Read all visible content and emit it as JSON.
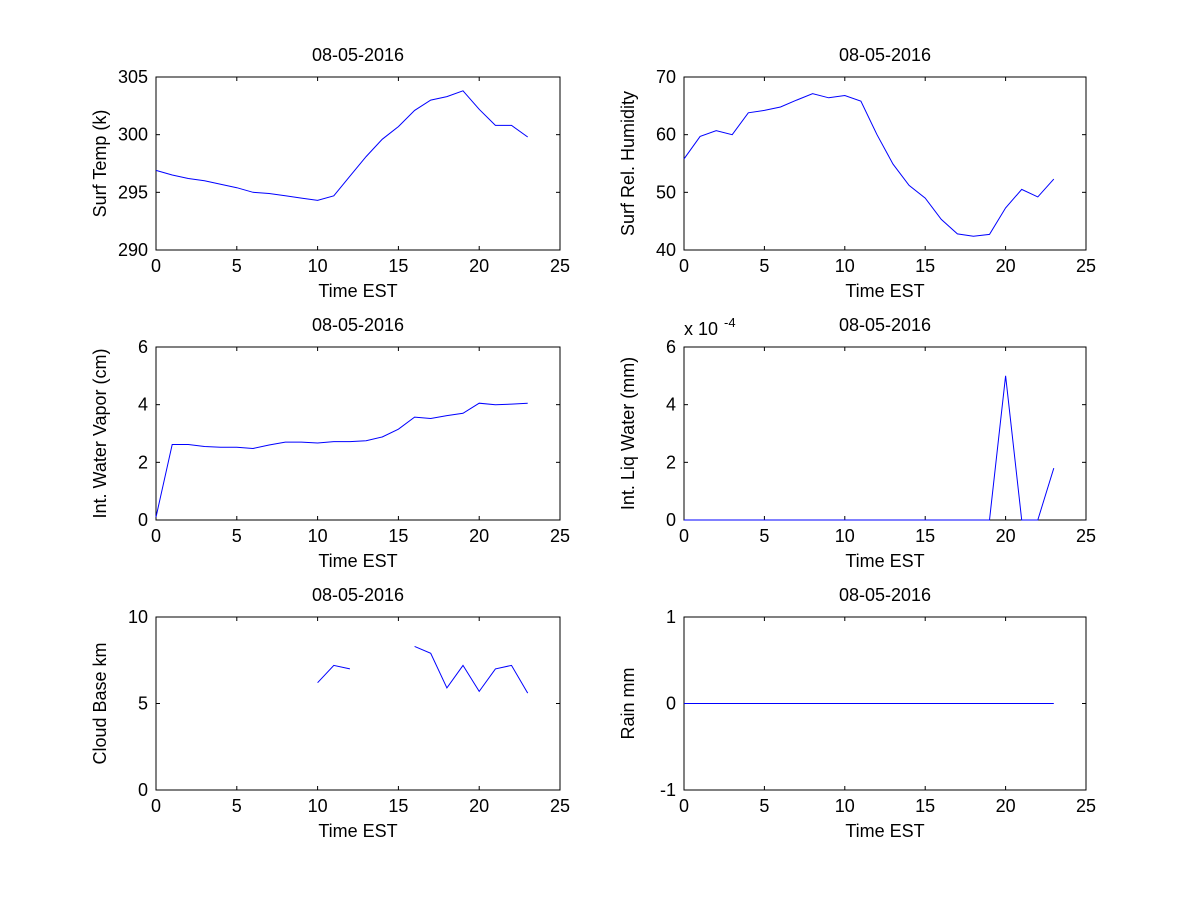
{
  "chart_data": [
    {
      "type": "line",
      "title": "08-05-2016",
      "xlabel": "Time EST",
      "ylabel": "Surf Temp (k)",
      "xlim": [
        0,
        25
      ],
      "ylim": [
        290,
        305
      ],
      "xticks": [
        0,
        5,
        10,
        15,
        20,
        25
      ],
      "yticks": [
        290,
        295,
        300,
        305
      ],
      "color": "#0000ff",
      "x": [
        0,
        1,
        2,
        3,
        4,
        5,
        6,
        7,
        8,
        9,
        10,
        11,
        12,
        13,
        14,
        15,
        16,
        17,
        18,
        19,
        20,
        21,
        22,
        23
      ],
      "y": [
        296.9,
        296.5,
        296.2,
        296.0,
        295.7,
        295.4,
        295.0,
        294.9,
        294.7,
        294.5,
        294.3,
        294.7,
        296.4,
        298.1,
        299.6,
        300.7,
        302.1,
        303.0,
        303.3,
        303.8,
        302.2,
        300.8,
        300.8,
        299.8
      ]
    },
    {
      "type": "line",
      "title": "08-05-2016",
      "xlabel": "Time EST",
      "ylabel": "Surf Rel. Humidity",
      "xlim": [
        0,
        25
      ],
      "ylim": [
        40,
        70
      ],
      "xticks": [
        0,
        5,
        10,
        15,
        20,
        25
      ],
      "yticks": [
        40,
        50,
        60,
        70
      ],
      "color": "#0000ff",
      "x": [
        0,
        1,
        2,
        3,
        4,
        5,
        6,
        7,
        8,
        9,
        10,
        11,
        12,
        13,
        14,
        15,
        16,
        17,
        18,
        19,
        20,
        21,
        22,
        23
      ],
      "y": [
        55.8,
        59.7,
        60.7,
        60.0,
        63.8,
        64.2,
        64.8,
        66.0,
        67.1,
        66.4,
        66.8,
        65.8,
        60.0,
        54.9,
        51.2,
        49.0,
        45.3,
        42.8,
        42.4,
        42.7,
        47.3,
        50.5,
        49.2,
        52.3
      ]
    },
    {
      "type": "line",
      "title": "08-05-2016",
      "xlabel": "Time EST",
      "ylabel": "Int. Water Vapor (cm)",
      "xlim": [
        0,
        25
      ],
      "ylim": [
        0,
        6
      ],
      "xticks": [
        0,
        5,
        10,
        15,
        20,
        25
      ],
      "yticks": [
        0,
        2,
        4,
        6
      ],
      "color": "#0000ff",
      "x": [
        0,
        1,
        2,
        3,
        4,
        5,
        6,
        7,
        8,
        9,
        10,
        11,
        12,
        13,
        14,
        15,
        16,
        17,
        18,
        19,
        20,
        21,
        22,
        23
      ],
      "y": [
        0.1,
        2.62,
        2.62,
        2.55,
        2.52,
        2.52,
        2.48,
        2.6,
        2.7,
        2.7,
        2.67,
        2.72,
        2.72,
        2.75,
        2.88,
        3.15,
        3.57,
        3.52,
        3.62,
        3.7,
        4.05,
        4.0,
        4.02,
        4.05
      ]
    },
    {
      "type": "line",
      "title": "08-05-2016",
      "xlabel": "Time EST",
      "ylabel": "Int. Liq Water (mm)",
      "xlim": [
        0,
        25
      ],
      "ylim": [
        0,
        6
      ],
      "xticks": [
        0,
        5,
        10,
        15,
        20,
        25
      ],
      "yticks": [
        0,
        2,
        4,
        6
      ],
      "exponent_label": "x 10",
      "exponent_power": "-4",
      "color": "#0000ff",
      "x": [
        0,
        1,
        2,
        3,
        4,
        5,
        6,
        7,
        8,
        9,
        10,
        11,
        12,
        13,
        14,
        15,
        16,
        17,
        18,
        19,
        20,
        21,
        22,
        23
      ],
      "y": [
        0,
        0,
        0,
        0,
        0,
        0,
        0,
        0,
        0,
        0,
        0,
        0,
        0,
        0,
        0,
        0,
        0,
        0,
        0,
        0,
        5.0,
        0,
        0,
        1.8
      ]
    },
    {
      "type": "line",
      "title": "08-05-2016",
      "xlabel": "Time EST",
      "ylabel": "Cloud Base km",
      "xlim": [
        0,
        25
      ],
      "ylim": [
        0,
        10
      ],
      "xticks": [
        0,
        5,
        10,
        15,
        20,
        25
      ],
      "yticks": [
        0,
        5,
        10
      ],
      "color": "#0000ff",
      "x": [
        10,
        11,
        12,
        13,
        14,
        15,
        16,
        17,
        18,
        19,
        20,
        21,
        22,
        23
      ],
      "y": [
        6.2,
        7.2,
        7.0,
        null,
        null,
        null,
        8.3,
        7.9,
        5.9,
        7.2,
        5.7,
        7.0,
        7.2,
        5.6
      ]
    },
    {
      "type": "line",
      "title": "08-05-2016",
      "xlabel": "Time EST",
      "ylabel": "Rain mm",
      "xlim": [
        0,
        25
      ],
      "ylim": [
        -1,
        1
      ],
      "xticks": [
        0,
        5,
        10,
        15,
        20,
        25
      ],
      "yticks": [
        -1,
        0,
        1
      ],
      "color": "#0000ff",
      "x": [
        0,
        1,
        2,
        3,
        4,
        5,
        6,
        7,
        8,
        9,
        10,
        11,
        12,
        13,
        14,
        15,
        16,
        17,
        18,
        19,
        20,
        21,
        22,
        23
      ],
      "y": [
        0,
        0,
        0,
        0,
        0,
        0,
        0,
        0,
        0,
        0,
        0,
        0,
        0,
        0,
        0,
        0,
        0,
        0,
        0,
        0,
        0,
        0,
        0,
        0
      ]
    }
  ]
}
